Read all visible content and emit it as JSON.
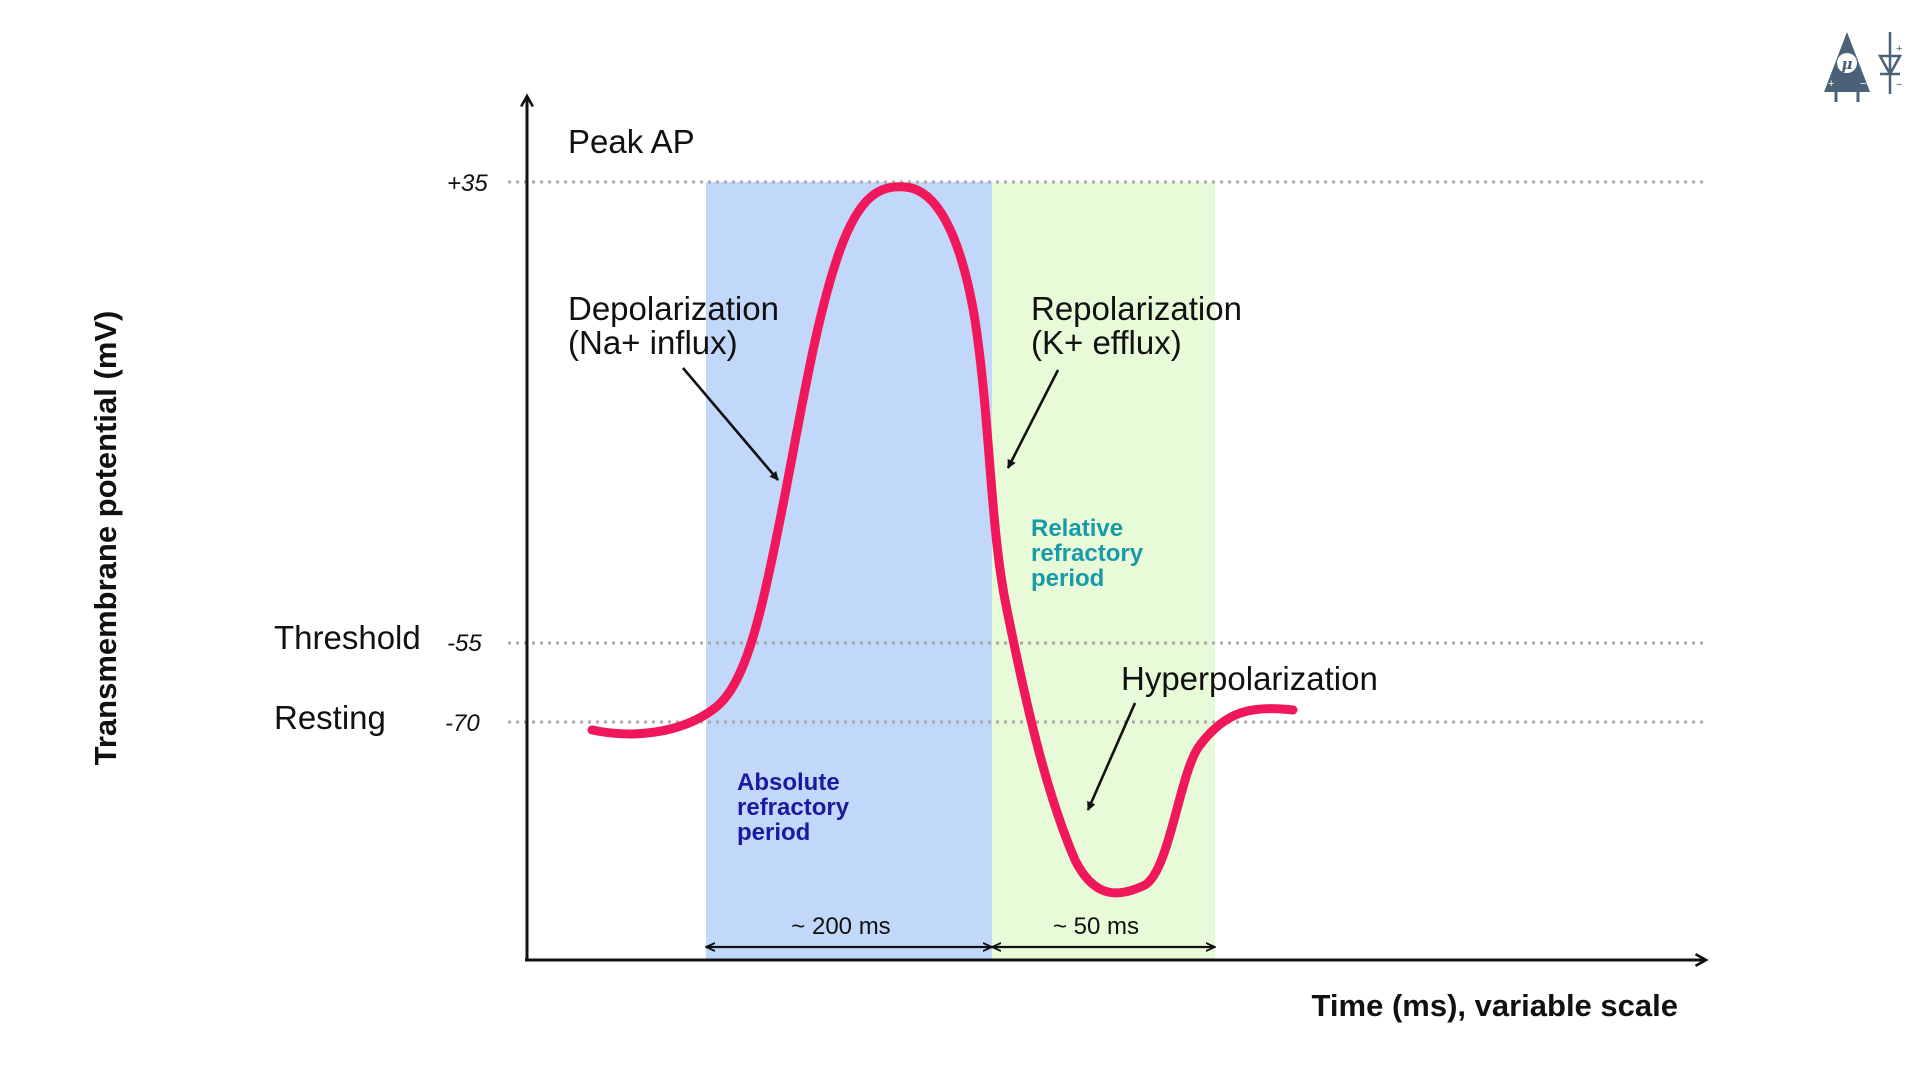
{
  "y_axis": {
    "label": "Transmembrane potential (mV)"
  },
  "x_axis": {
    "label": "Time (ms), variable scale"
  },
  "levels": {
    "peak": {
      "name": "Peak AP",
      "value": "+35"
    },
    "threshold": {
      "name": "Threshold",
      "value": "-55"
    },
    "resting": {
      "name": "Resting",
      "value": "-70"
    }
  },
  "phases": {
    "depolarization": {
      "line1": "Depolarization",
      "line2": "(Na+ influx)"
    },
    "repolarization": {
      "line1": "Repolarization",
      "line2": "(K+ efflux)"
    },
    "hyperpolarization": {
      "label": "Hyperpolarization"
    }
  },
  "regions": {
    "absolute": {
      "line1": "Absolute",
      "line2": "refractory",
      "line3": "period",
      "duration": "~ 200 ms",
      "fill": "#c2d8fb",
      "text_color": "#1a1aa0"
    },
    "relative": {
      "line1": "Relative",
      "line2": "refractory",
      "line3": "period",
      "duration": "~ 50 ms",
      "fill": "#e8fbd8",
      "text_color": "#1a9aa8"
    }
  },
  "colors": {
    "curve": "#f0185a",
    "axis": "#111111",
    "gridline": "#aaaaaa"
  },
  "logo": {
    "icon": "neuron-logo-icon",
    "color": "#4a6178"
  }
}
